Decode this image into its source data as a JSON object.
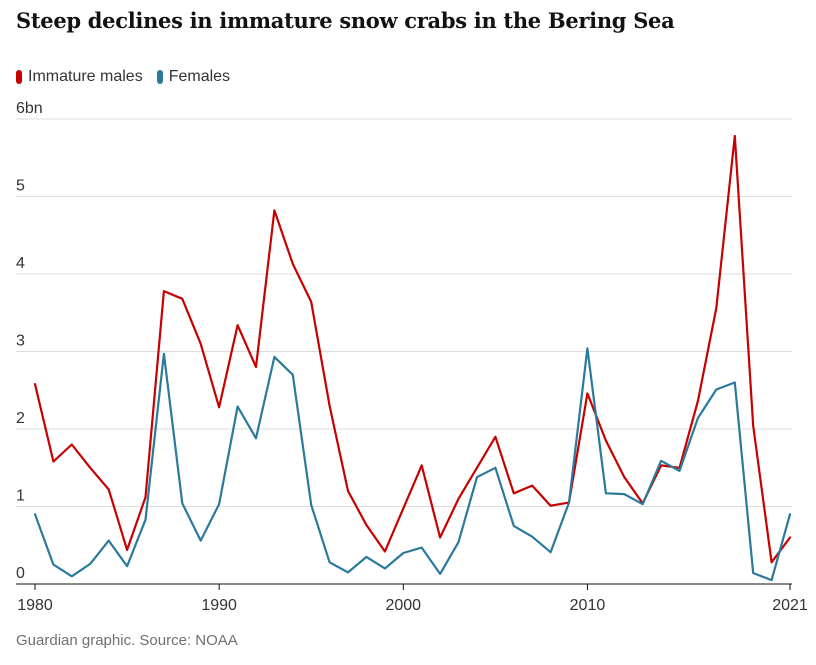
{
  "title": "Steep declines in immature snow crabs in the Bering Sea",
  "footer": "Guardian graphic. Source: NOAA",
  "colors": {
    "males": "#c70000",
    "females": "#2b7a9b"
  },
  "chart_data": {
    "type": "line",
    "title": "Steep declines in immature snow crabs in the Bering Sea",
    "xlabel": "",
    "ylabel": "",
    "xlim": [
      1980,
      2021
    ],
    "ylim": [
      0,
      6
    ],
    "y_ticks": [
      {
        "value": 0,
        "label": "0"
      },
      {
        "value": 1,
        "label": "1"
      },
      {
        "value": 2,
        "label": "2"
      },
      {
        "value": 3,
        "label": "3"
      },
      {
        "value": 4,
        "label": "4"
      },
      {
        "value": 5,
        "label": "5"
      },
      {
        "value": 6,
        "label": "6bn"
      }
    ],
    "x_ticks": [
      {
        "value": 1980,
        "label": "1980"
      },
      {
        "value": 1990,
        "label": "1990"
      },
      {
        "value": 2000,
        "label": "2000"
      },
      {
        "value": 2010,
        "label": "2010"
      },
      {
        "value": 2021,
        "label": "2021"
      }
    ],
    "series": [
      {
        "name": "Immature males",
        "color": "#c70000",
        "points": [
          [
            1980,
            2.58
          ],
          [
            1981,
            1.58
          ],
          [
            1982,
            1.8
          ],
          [
            1983,
            1.5
          ],
          [
            1984,
            1.22
          ],
          [
            1985,
            0.44
          ],
          [
            1986,
            1.12
          ],
          [
            1987,
            3.78
          ],
          [
            1988,
            3.68
          ],
          [
            1989,
            3.1
          ],
          [
            1990,
            2.28
          ],
          [
            1991,
            3.34
          ],
          [
            1992,
            2.8
          ],
          [
            1993,
            4.82
          ],
          [
            1994,
            4.13
          ],
          [
            1995,
            3.64
          ],
          [
            1996,
            2.3
          ],
          [
            1997,
            1.2
          ],
          [
            1998,
            0.76
          ],
          [
            1999,
            0.42
          ],
          [
            2001,
            1.53
          ],
          [
            2002,
            0.6
          ],
          [
            2003,
            1.1
          ],
          [
            2005,
            1.9
          ],
          [
            2006,
            1.17
          ],
          [
            2007,
            1.27
          ],
          [
            2008,
            1.01
          ],
          [
            2009,
            1.05
          ],
          [
            2010,
            2.46
          ],
          [
            2011,
            1.85
          ],
          [
            2012,
            1.38
          ],
          [
            2013,
            1.04
          ],
          [
            2014,
            1.53
          ],
          [
            2015,
            1.5
          ],
          [
            2016,
            2.36
          ],
          [
            2017,
            3.56
          ],
          [
            2018,
            5.78
          ],
          [
            2019,
            2.04
          ],
          [
            2020,
            0.28
          ],
          [
            2021,
            0.6
          ]
        ]
      },
      {
        "name": "Females",
        "color": "#2b7a9b",
        "points": [
          [
            1980,
            0.9
          ],
          [
            1981,
            0.25
          ],
          [
            1982,
            0.1
          ],
          [
            1983,
            0.26
          ],
          [
            1984,
            0.56
          ],
          [
            1985,
            0.23
          ],
          [
            1986,
            0.83
          ],
          [
            1987,
            2.97
          ],
          [
            1988,
            1.04
          ],
          [
            1989,
            0.56
          ],
          [
            1990,
            1.03
          ],
          [
            1991,
            2.29
          ],
          [
            1992,
            1.88
          ],
          [
            1993,
            2.93
          ],
          [
            1994,
            2.7
          ],
          [
            1995,
            1.02
          ],
          [
            1996,
            0.28
          ],
          [
            1997,
            0.15
          ],
          [
            1998,
            0.35
          ],
          [
            1999,
            0.2
          ],
          [
            2000,
            0.4
          ],
          [
            2001,
            0.47
          ],
          [
            2002,
            0.13
          ],
          [
            2003,
            0.54
          ],
          [
            2004,
            1.38
          ],
          [
            2005,
            1.5
          ],
          [
            2006,
            0.75
          ],
          [
            2007,
            0.61
          ],
          [
            2008,
            0.41
          ],
          [
            2009,
            1.05
          ],
          [
            2010,
            3.04
          ],
          [
            2011,
            1.17
          ],
          [
            2012,
            1.16
          ],
          [
            2013,
            1.03
          ],
          [
            2014,
            1.59
          ],
          [
            2015,
            1.46
          ],
          [
            2016,
            2.14
          ],
          [
            2017,
            2.51
          ],
          [
            2018,
            2.6
          ],
          [
            2019,
            0.14
          ],
          [
            2020,
            0.05
          ],
          [
            2021,
            0.9
          ]
        ]
      }
    ]
  }
}
